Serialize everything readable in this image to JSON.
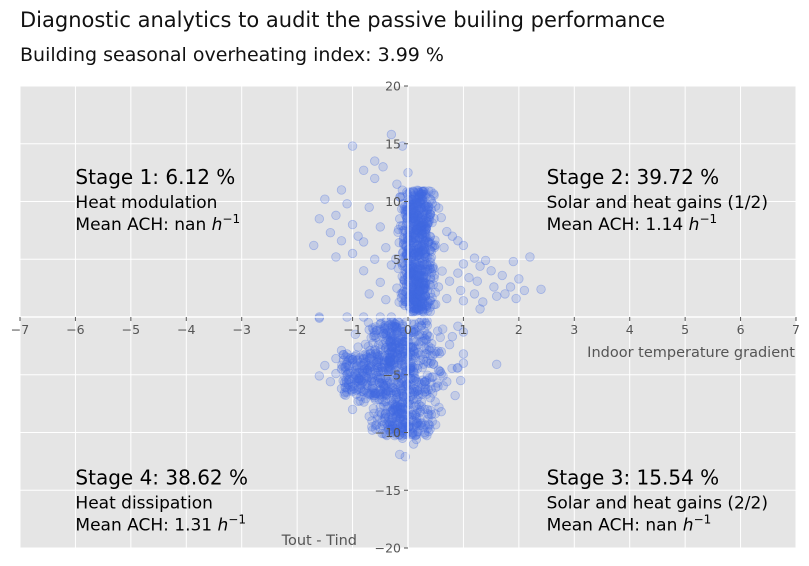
{
  "header": {
    "title": "Diagnostic analytics to audit the passive builing performance",
    "subtitle": "Building seasonal overheating index: 3.99 %"
  },
  "chart_data": {
    "type": "scatter",
    "xlabel": "Indoor temperature gradient",
    "ylabel": "Tout - Tind",
    "xlim": [
      -7,
      7
    ],
    "ylim": [
      -20,
      20
    ],
    "x_ticks": [
      -7,
      -6,
      -5,
      -4,
      -3,
      -2,
      -1,
      0,
      1,
      2,
      3,
      4,
      5,
      6,
      7
    ],
    "y_ticks": [
      -20,
      -15,
      -10,
      -5,
      5,
      10,
      15,
      20
    ],
    "grid": true,
    "point_color": "#4169e1",
    "background_color": "#e5e5e5",
    "stages": [
      {
        "title": "Stage 1: 6.12 %",
        "label": "Heat modulation",
        "ach_text": "Mean ACH: nan",
        "quadrant": "top-left"
      },
      {
        "title": "Stage 2: 39.72 %",
        "label": "Solar and heat gains (1/2)",
        "ach_text": "Mean ACH: 1.14",
        "quadrant": "top-right"
      },
      {
        "title": "Stage 3: 15.54 %",
        "label": "Solar and heat gains (2/2)",
        "ach_text": "Mean ACH: nan",
        "quadrant": "bottom-right"
      },
      {
        "title": "Stage 4: 38.62 %",
        "label": "Heat dissipation",
        "ach_text": "Mean ACH: 1.31",
        "quadrant": "bottom-left"
      }
    ],
    "ach_unit": "h",
    "ach_unit_exp": "−1",
    "points": [
      [
        -1.0,
        14.8
      ],
      [
        -0.3,
        15.8
      ],
      [
        -0.45,
        13.0
      ],
      [
        -0.8,
        12.7
      ],
      [
        -0.6,
        12.0
      ],
      [
        -1.2,
        11.0
      ],
      [
        -1.5,
        10.2
      ],
      [
        -1.1,
        9.8
      ],
      [
        -0.7,
        9.5
      ],
      [
        -0.2,
        11.5
      ],
      [
        -0.15,
        8.5
      ],
      [
        -1.3,
        8.8
      ],
      [
        -1.6,
        8.5
      ],
      [
        -1.0,
        8.0
      ],
      [
        -1.4,
        7.3
      ],
      [
        -0.9,
        7.0
      ],
      [
        -0.5,
        7.8
      ],
      [
        -1.2,
        6.6
      ],
      [
        -1.7,
        6.2
      ],
      [
        -0.8,
        6.5
      ],
      [
        -0.4,
        6.0
      ],
      [
        -1.0,
        5.5
      ],
      [
        -0.6,
        5.0
      ],
      [
        -1.3,
        5.2
      ],
      [
        -0.3,
        4.5
      ],
      [
        -0.8,
        4.0
      ],
      [
        -0.5,
        3.0
      ],
      [
        -0.2,
        2.5
      ],
      [
        -0.7,
        2.0
      ],
      [
        -0.4,
        1.5
      ],
      [
        -1.6,
        0.0
      ],
      [
        -1.1,
        0.0
      ],
      [
        -0.8,
        0.0
      ],
      [
        -0.5,
        0.0
      ],
      [
        -0.3,
        0.0
      ],
      [
        -1.6,
        -0.1
      ],
      [
        -0.6,
        13.5
      ],
      [
        -0.1,
        14.8
      ],
      [
        0.0,
        12.5
      ],
      [
        0.1,
        9.0
      ],
      [
        -0.05,
        6.2
      ],
      [
        0.0,
        4.2
      ],
      [
        0.4,
        10.2
      ],
      [
        0.5,
        9.6
      ],
      [
        0.6,
        8.6
      ],
      [
        0.7,
        7.4
      ],
      [
        0.8,
        7.0
      ],
      [
        0.9,
        6.6
      ],
      [
        0.65,
        6.0
      ],
      [
        1.0,
        6.2
      ],
      [
        1.2,
        5.1
      ],
      [
        1.3,
        4.4
      ],
      [
        1.4,
        4.9
      ],
      [
        1.5,
        4.0
      ],
      [
        1.0,
        4.6
      ],
      [
        0.9,
        3.8
      ],
      [
        1.1,
        3.4
      ],
      [
        0.75,
        3.1
      ],
      [
        0.55,
        2.6
      ],
      [
        0.95,
        2.3
      ],
      [
        1.2,
        2.0
      ],
      [
        1.35,
        1.3
      ],
      [
        1.0,
        1.4
      ],
      [
        0.7,
        1.6
      ],
      [
        1.3,
        0.7
      ],
      [
        0.5,
        1.1
      ],
      [
        1.55,
        2.6
      ],
      [
        1.75,
        2.0
      ],
      [
        1.9,
        4.8
      ],
      [
        2.0,
        3.3
      ],
      [
        2.1,
        2.3
      ],
      [
        2.2,
        5.2
      ],
      [
        2.4,
        2.4
      ],
      [
        1.95,
        1.6
      ],
      [
        1.7,
        3.6
      ],
      [
        1.6,
        1.8
      ],
      [
        1.85,
        2.6
      ],
      [
        1.25,
        3.1
      ],
      [
        0.35,
        1.3
      ],
      [
        0.2,
        1.8
      ],
      [
        0.3,
        2.5
      ],
      [
        0.1,
        1.0
      ],
      [
        0.15,
        0.5
      ],
      [
        0.25,
        -0.3
      ],
      [
        0.9,
        -0.8
      ],
      [
        1.0,
        -1.3
      ],
      [
        0.8,
        -1.7
      ],
      [
        0.75,
        -2.4
      ],
      [
        0.6,
        -3.0
      ],
      [
        1.0,
        -4.0
      ],
      [
        0.55,
        -4.6
      ],
      [
        0.9,
        -4.4
      ],
      [
        0.45,
        -5.2
      ],
      [
        0.95,
        -5.5
      ],
      [
        0.5,
        -6.1
      ],
      [
        0.3,
        -6.5
      ],
      [
        0.85,
        -6.8
      ],
      [
        0.4,
        -7.0
      ],
      [
        0.2,
        -7.6
      ],
      [
        0.6,
        -8.2
      ],
      [
        0.35,
        -8.0
      ],
      [
        0.2,
        -9.4
      ],
      [
        1.6,
        -4.1
      ],
      [
        1.0,
        -3.2
      ],
      [
        0.7,
        -5.6
      ],
      [
        0.3,
        -10.0
      ],
      [
        0.1,
        -11.0
      ],
      [
        0.15,
        -10.6
      ],
      [
        -1.5,
        -4.2
      ],
      [
        -1.3,
        -4.9
      ],
      [
        -1.6,
        -5.1
      ],
      [
        -1.2,
        -4.5
      ],
      [
        -1.0,
        -4.0
      ],
      [
        -1.4,
        -5.6
      ],
      [
        -1.1,
        -5.0
      ],
      [
        -0.9,
        -5.7
      ],
      [
        -1.2,
        -6.2
      ],
      [
        -1.0,
        -6.0
      ],
      [
        -0.8,
        -6.5
      ],
      [
        -0.6,
        -7.0
      ],
      [
        -0.9,
        -7.3
      ],
      [
        -0.5,
        -7.8
      ],
      [
        -1.0,
        -8.0
      ],
      [
        -0.7,
        -8.6
      ],
      [
        -0.3,
        -9.0
      ],
      [
        -0.5,
        -9.6
      ],
      [
        -0.2,
        -10.0
      ],
      [
        -0.1,
        -10.5
      ],
      [
        -0.15,
        -11.9
      ],
      [
        -0.05,
        -12.1
      ],
      [
        -0.3,
        -9.7
      ],
      [
        -1.1,
        -3.2
      ],
      [
        -0.9,
        -2.6
      ],
      [
        -0.6,
        -1.6
      ],
      [
        -0.7,
        -1.1
      ],
      [
        -0.5,
        -0.6
      ],
      [
        -0.8,
        -3.6
      ],
      [
        -1.2,
        -2.9
      ],
      [
        -0.4,
        -2.1
      ],
      [
        -0.3,
        -1.4
      ],
      [
        -0.2,
        -0.9
      ],
      [
        -0.95,
        -1.5
      ],
      [
        -1.0,
        -3.7
      ],
      [
        -0.6,
        -4.6
      ],
      [
        -0.4,
        -5.9
      ],
      [
        -0.2,
        -7.0
      ],
      [
        -0.65,
        -9.0
      ],
      [
        -0.85,
        -6.9
      ],
      [
        -1.3,
        -3.6
      ]
    ]
  }
}
